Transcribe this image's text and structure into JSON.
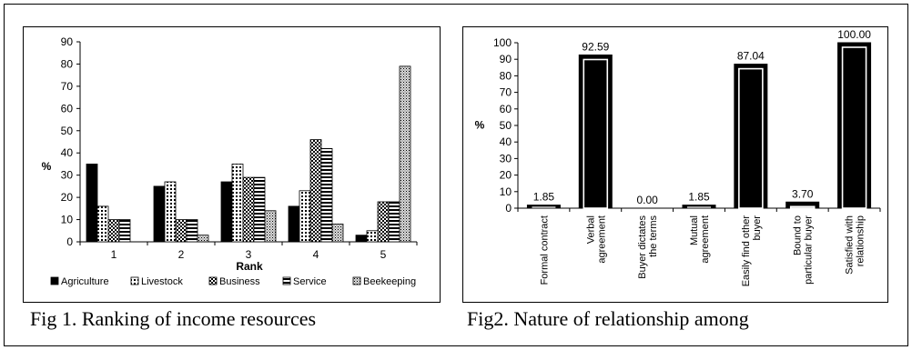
{
  "chart_data": [
    {
      "type": "bar",
      "caption": "Fig 1. Ranking of income resources",
      "xlabel": "Rank",
      "ylabel": "%",
      "ylim": [
        0,
        90
      ],
      "yticks": [
        "0",
        "10",
        "20",
        "30",
        "40",
        "50",
        "60",
        "70",
        "80",
        "90"
      ],
      "categories": [
        "1",
        "2",
        "3",
        "4",
        "5"
      ],
      "legend_position": "bottom",
      "series": [
        {
          "name": "Agriculture",
          "values": [
            35,
            25,
            27,
            16,
            3
          ],
          "pattern": "solid"
        },
        {
          "name": "Livestock",
          "values": [
            16,
            27,
            35,
            23,
            5
          ],
          "pattern": "dots"
        },
        {
          "name": "Business",
          "values": [
            10,
            10,
            29,
            46,
            18
          ],
          "pattern": "checker"
        },
        {
          "name": "Service",
          "values": [
            10,
            10,
            29,
            42,
            18
          ],
          "pattern": "hlines"
        },
        {
          "name": "Beekeeping",
          "values": [
            0,
            3,
            14,
            8,
            79
          ],
          "pattern": "dense-dots"
        }
      ]
    },
    {
      "type": "bar",
      "caption": "Fig2. Nature of relationship among",
      "ylabel": "%",
      "ylim": [
        0,
        100
      ],
      "yticks": [
        "0",
        "10",
        "20",
        "30",
        "40",
        "50",
        "60",
        "70",
        "80",
        "90",
        "100"
      ],
      "categories": [
        [
          "Formal contract"
        ],
        [
          "Verbal",
          "agreement"
        ],
        [
          "Buyer dictates",
          "the terms"
        ],
        [
          "Mutual",
          "agreement"
        ],
        [
          "Easily find other",
          "buyer"
        ],
        [
          "Bound to",
          "particular buyer"
        ],
        [
          "Satisfied with",
          "relationship"
        ]
      ],
      "values": [
        1.85,
        92.59,
        0.0,
        1.85,
        87.04,
        3.7,
        100.0
      ],
      "data_labels": [
        "1.85",
        "92.59",
        "0.00",
        "1.85",
        "87.04",
        "3.70",
        "100.00"
      ],
      "bar_color": "#000000"
    }
  ]
}
